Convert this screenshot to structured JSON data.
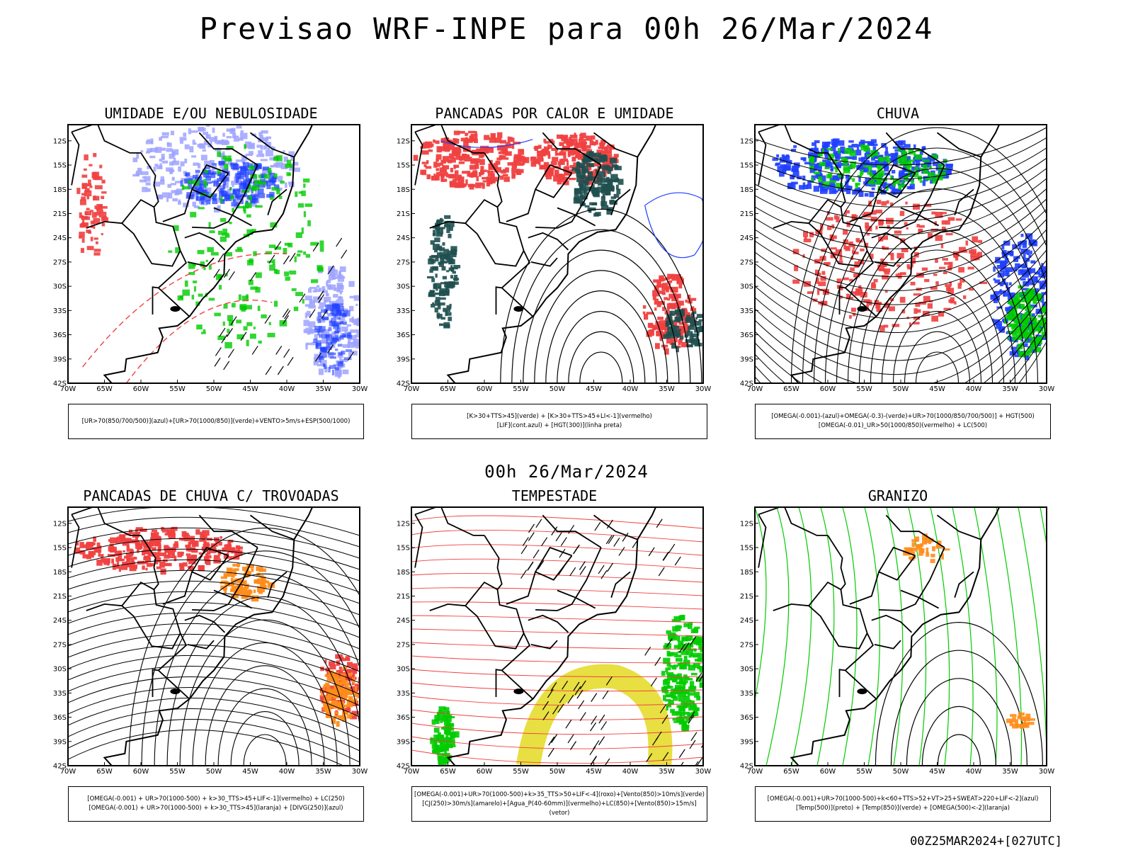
{
  "title": "Previsao WRF-INPE  para 00h 26/Mar/2024",
  "subtitle": "00h 26/Mar/2024",
  "footer": "00Z25MAR2024+[027UTC]",
  "axis": {
    "lon": [
      "70W",
      "65W",
      "60W",
      "55W",
      "50W",
      "45W",
      "40W",
      "35W",
      "30W"
    ],
    "lat": [
      "12S",
      "15S",
      "18S",
      "21S",
      "24S",
      "27S",
      "30S",
      "33S",
      "36S",
      "39S",
      "42S"
    ]
  },
  "colors": {
    "red": "#f04040",
    "green": "#00cc00",
    "blue": "#1f3fff",
    "lightblue": "#9fa3ff",
    "darkteal": "#1f4f4f",
    "orange": "#ff8c1a",
    "yellow": "#e6dc2e"
  },
  "panels": [
    {
      "title": "UMIDADE E/OU NEBULOSIDADE",
      "legend": [
        "[UR>70(850/700/500)](azul)+[UR>70(1000/850)](verde)+VENTO>5m/s+ESP(500/1000)"
      ]
    },
    {
      "title": "PANCADAS POR CALOR E UMIDADE",
      "legend": [
        "[K>30+TTS>45](verde) + [K>30+TTS>45+LI<-1](vermelho)",
        "[LIF](cont.azul) + [HGT(300)](linha preta)"
      ]
    },
    {
      "title": "CHUVA",
      "legend": [
        "[OMEGA(-0.001)-(azul)+OMEGA(-0.3)-(verde)+UR>70(1000/850/700/500)] + HGT(500)",
        "[OMEGA(-0.01)_UR>50(1000/850)(vermelho) + LC(500)"
      ]
    },
    {
      "title": "PANCADAS DE CHUVA C/ TROVOADAS",
      "legend": [
        "[OMEGA(-0.001) + UR>70(1000-500) + k>30_TTS>45+LIF<-1](vermelho) + LC(250)",
        "[OMEGA(-0.001) + UR>70(1000-500) + k>30_TTS>45](laranja) + [DIVG(250)](azul)"
      ]
    },
    {
      "title": "TEMPESTADE",
      "legend": [
        "[OMEGA(-0.001)+UR>70(1000-500)+k>35_TTS>50+LIF<-4](roxo)+[Vento(850)>10m/s](verde)",
        "[CJ(250)>30m/s](amarelo)+[Agua_P(40-60mm)](vermelho)+LC(850)+[Vento(850)>15m/s](vetor)"
      ]
    },
    {
      "title": "GRANIZO",
      "legend": [
        "[OMEGA(-0.001)+UR>70(1000-500)+k<60+TTS>52+VT>25+SWEAT>220+LIF<-2](azul)",
        "[Temp(500)](preto) + [Temp(850)](verde) + [OMEGA(500)<-2](laranja)"
      ]
    }
  ]
}
